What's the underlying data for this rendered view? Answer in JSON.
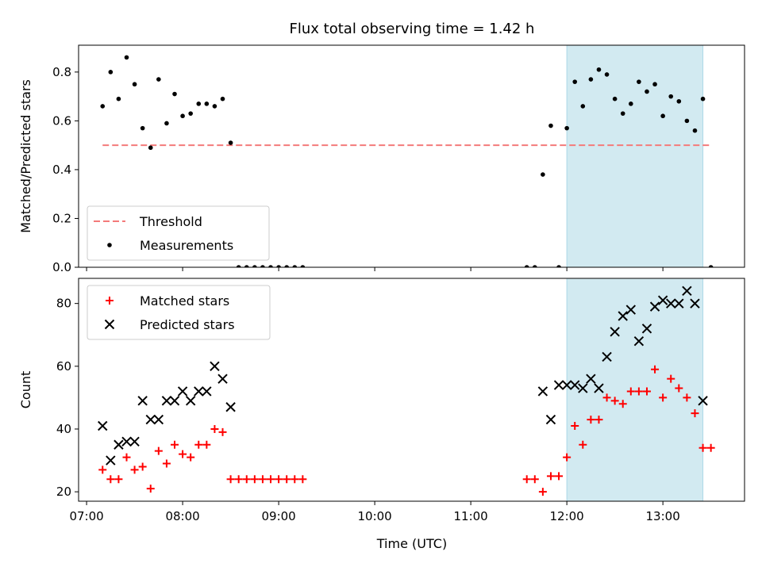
{
  "chart_data": {
    "title": "Flux total observing time = 1.42 h",
    "xlabel": "Time (UTC)",
    "x_ticks": [
      "07:00",
      "08:00",
      "09:00",
      "10:00",
      "11:00",
      "12:00",
      "13:00"
    ],
    "xlim": [
      "06:55",
      "13:51"
    ],
    "highlight_span": [
      "12:00",
      "13:25"
    ],
    "colors": {
      "threshold": "#f47a7a",
      "measurements": "#000000",
      "matched": "#ff0000",
      "predicted": "#000000",
      "span": "#add8e6"
    },
    "panels": [
      {
        "type": "scatter",
        "ylabel": "Matched/Predicted stars",
        "ylim": [
          0,
          0.91
        ],
        "y_ticks": [
          "0.0",
          "0.2",
          "0.4",
          "0.6",
          "0.8"
        ],
        "legend_position": "lower-left",
        "series": [
          {
            "name": "Threshold",
            "style": "dashed-line",
            "x": [
              "07:10",
              "13:30"
            ],
            "y": [
              0.5,
              0.5
            ]
          },
          {
            "name": "Measurements",
            "marker": "dot",
            "x": [
              "07:10",
              "07:15",
              "07:20",
              "07:25",
              "07:30",
              "07:35",
              "07:40",
              "07:45",
              "07:50",
              "07:55",
              "08:00",
              "08:05",
              "08:10",
              "08:15",
              "08:20",
              "08:25",
              "08:30",
              "08:35",
              "08:40",
              "08:45",
              "08:50",
              "08:55",
              "09:00",
              "09:05",
              "09:10",
              "09:15",
              "11:35",
              "11:40",
              "11:45",
              "11:50",
              "11:55",
              "12:00",
              "12:05",
              "12:10",
              "12:15",
              "12:20",
              "12:25",
              "12:30",
              "12:35",
              "12:40",
              "12:45",
              "12:50",
              "12:55",
              "13:00",
              "13:05",
              "13:10",
              "13:15",
              "13:20",
              "13:25",
              "13:30"
            ],
            "y": [
              0.66,
              0.8,
              0.69,
              0.86,
              0.75,
              0.57,
              0.49,
              0.77,
              0.59,
              0.71,
              0.62,
              0.63,
              0.67,
              0.67,
              0.66,
              0.69,
              0.51,
              0,
              0,
              0,
              0,
              0,
              0,
              0,
              0,
              0,
              0,
              0,
              0.38,
              0.58,
              0,
              0.57,
              0.76,
              0.66,
              0.77,
              0.81,
              0.79,
              0.69,
              0.63,
              0.67,
              0.76,
              0.72,
              0.75,
              0.62,
              0.7,
              0.68,
              0.6,
              0.56,
              0.69,
              0
            ]
          }
        ]
      },
      {
        "type": "scatter",
        "ylabel": "Count",
        "ylim": [
          17,
          88
        ],
        "y_ticks": [
          "20",
          "40",
          "60",
          "80"
        ],
        "legend_position": "top-left",
        "series": [
          {
            "name": "Matched stars",
            "marker": "plus",
            "x": [
              "07:10",
              "07:15",
              "07:20",
              "07:25",
              "07:30",
              "07:35",
              "07:40",
              "07:45",
              "07:50",
              "07:55",
              "08:00",
              "08:05",
              "08:10",
              "08:15",
              "08:20",
              "08:25",
              "08:30",
              "08:35",
              "08:40",
              "08:45",
              "08:50",
              "08:55",
              "09:00",
              "09:05",
              "09:10",
              "09:15",
              "11:35",
              "11:40",
              "11:45",
              "11:50",
              "11:55",
              "12:00",
              "12:05",
              "12:10",
              "12:15",
              "12:20",
              "12:25",
              "12:30",
              "12:35",
              "12:40",
              "12:45",
              "12:50",
              "12:55",
              "13:00",
              "13:05",
              "13:10",
              "13:15",
              "13:20",
              "13:25",
              "13:30"
            ],
            "y": [
              27,
              24,
              24,
              31,
              27,
              28,
              21,
              33,
              29,
              35,
              32,
              31,
              35,
              35,
              40,
              39,
              24,
              24,
              24,
              24,
              24,
              24,
              24,
              24,
              24,
              24,
              24,
              24,
              20,
              25,
              25,
              31,
              41,
              35,
              43,
              43,
              50,
              49,
              48,
              52,
              52,
              52,
              59,
              50,
              56,
              53,
              50,
              45,
              34,
              34
            ]
          },
          {
            "name": "Predicted stars",
            "marker": "x",
            "x": [
              "07:10",
              "07:15",
              "07:20",
              "07:25",
              "07:30",
              "07:35",
              "07:40",
              "07:45",
              "07:50",
              "07:55",
              "08:00",
              "08:05",
              "08:10",
              "08:15",
              "08:20",
              "08:25",
              "08:30",
              "11:45",
              "11:50",
              "11:55",
              "12:00",
              "12:05",
              "12:10",
              "12:15",
              "12:20",
              "12:25",
              "12:30",
              "12:35",
              "12:40",
              "12:45",
              "12:50",
              "12:55",
              "13:00",
              "13:05",
              "13:10",
              "13:15",
              "13:20",
              "13:25"
            ],
            "y": [
              41,
              30,
              35,
              36,
              36,
              49,
              43,
              43,
              49,
              49,
              52,
              49,
              52,
              52,
              60,
              56,
              47,
              52,
              43,
              54,
              54,
              54,
              53,
              56,
              53,
              63,
              71,
              76,
              78,
              68,
              72,
              79,
              81,
              80,
              80,
              84,
              80,
              49
            ]
          }
        ]
      }
    ]
  }
}
